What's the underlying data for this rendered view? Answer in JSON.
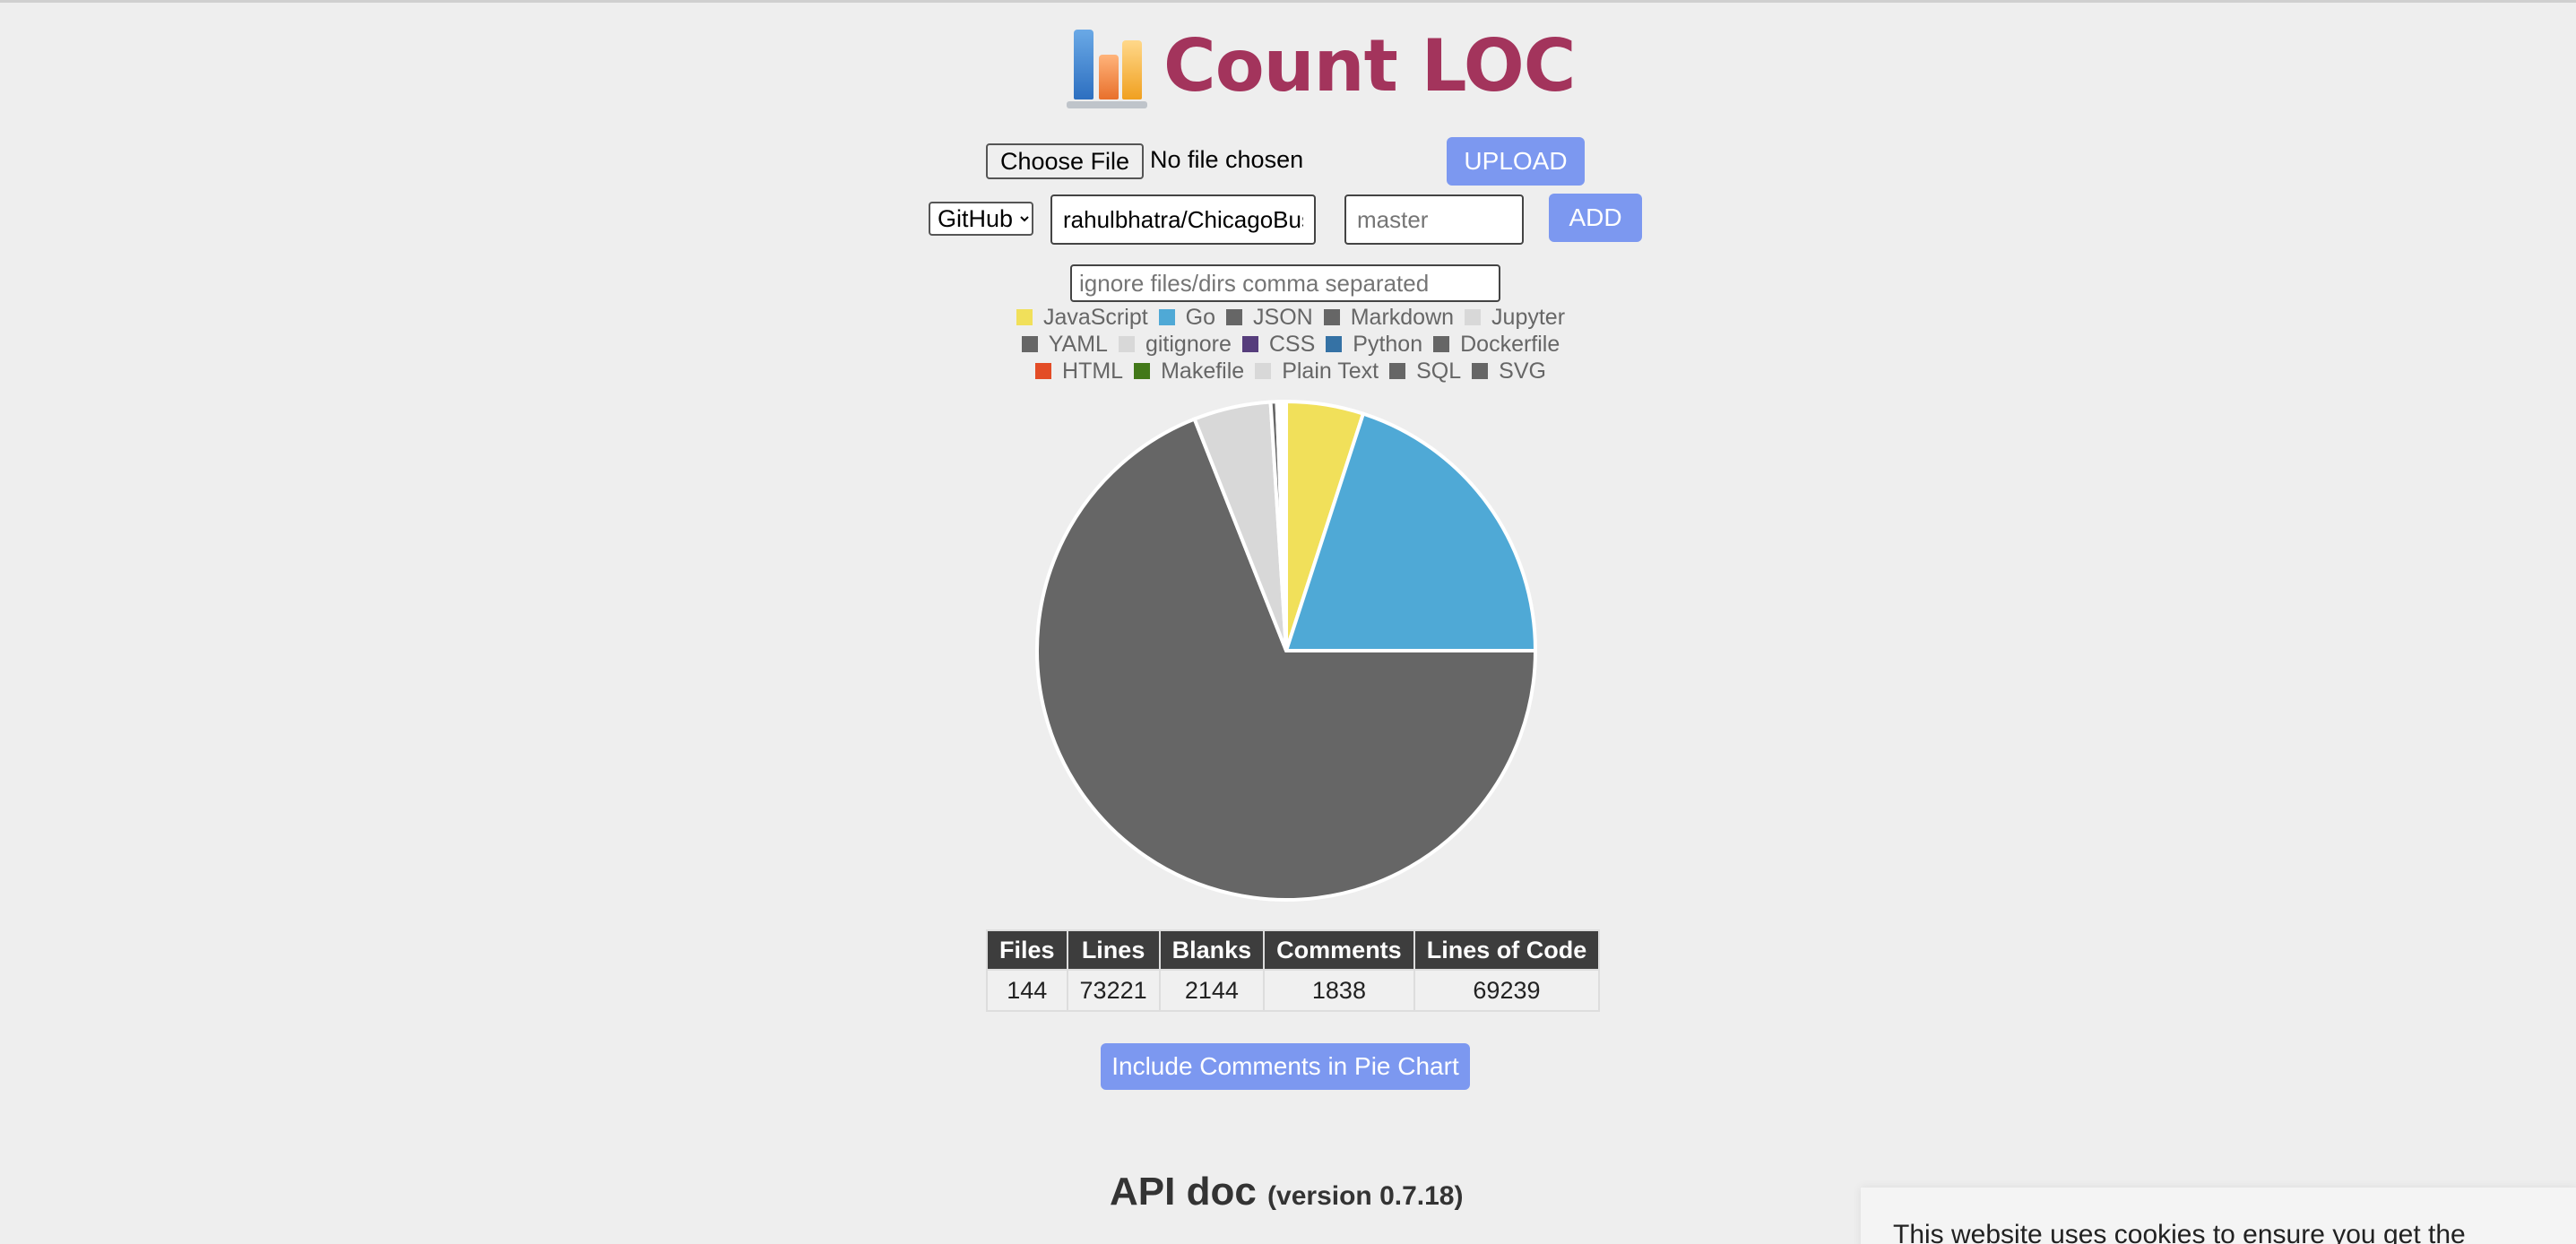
{
  "header": {
    "title": "Count LOC",
    "logo_icon": "bar-chart-icon"
  },
  "upload": {
    "choose_file_label": "Choose File",
    "file_status": "No file chosen",
    "upload_label": "UPLOAD"
  },
  "repo": {
    "source_selected": "GitHub",
    "repo_value": "rahulbhatra/ChicagoBus",
    "branch_placeholder": "master",
    "add_label": "ADD",
    "ignore_placeholder": "ignore files/dirs comma separated"
  },
  "chart_data": {
    "type": "pie",
    "legend_placement": "top",
    "slices": [
      {
        "label": "JavaScript",
        "value": 5.0,
        "color": "#f1e05a"
      },
      {
        "label": "Go",
        "value": 20.0,
        "color": "#4fa9d6"
      },
      {
        "label": "JSON",
        "value": 0.0,
        "color": "#666666"
      },
      {
        "label": "Markdown",
        "value": 69.0,
        "color": "#666666"
      },
      {
        "label": "Jupyter",
        "value": 5.0,
        "color": "#d8d8d8"
      },
      {
        "label": "YAML",
        "value": 0.4,
        "color": "#666666"
      },
      {
        "label": "gitignore",
        "value": 0.2,
        "color": "#d8d8d8"
      },
      {
        "label": "CSS",
        "value": 0.1,
        "color": "#563d7c"
      },
      {
        "label": "Python",
        "value": 0.1,
        "color": "#3572a5"
      },
      {
        "label": "Dockerfile",
        "value": 0.1,
        "color": "#666666"
      },
      {
        "label": "HTML",
        "value": 0.05,
        "color": "#e34c26"
      },
      {
        "label": "Makefile",
        "value": 0.05,
        "color": "#427819"
      },
      {
        "label": "Plain Text",
        "value": 0.0,
        "color": "#d8d8d8"
      },
      {
        "label": "SQL",
        "value": 0.0,
        "color": "#666666"
      },
      {
        "label": "SVG",
        "value": 0.0,
        "color": "#666666"
      }
    ]
  },
  "stats": {
    "headers": [
      "Files",
      "Lines",
      "Blanks",
      "Comments",
      "Lines of Code"
    ],
    "values": [
      "144",
      "73221",
      "2144",
      "1838",
      "69239"
    ]
  },
  "include_comments_label": "Include Comments in Pie Chart",
  "api_doc": {
    "title": "API doc",
    "version": "(version 0.7.18)"
  },
  "cookie_text": "This website uses cookies to ensure you get the"
}
